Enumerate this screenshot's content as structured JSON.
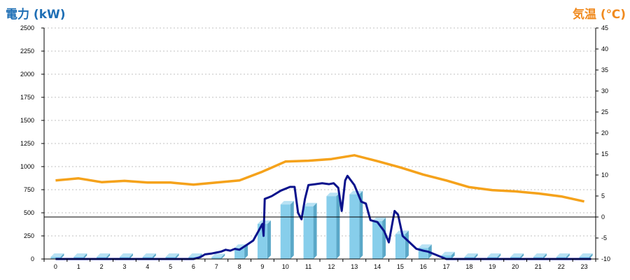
{
  "header": {
    "left_title": "電力 (kW)",
    "right_title": "気温 (℃)"
  },
  "colors": {
    "bar_front": "#87ceeb",
    "bar_side": "#5aa8c8",
    "bar_top": "#b8e2f4",
    "power_line": "#0a128c",
    "temp_line": "#f5a21b",
    "grid": "#c0c0c0",
    "zero_line": "#000000"
  },
  "chart_data": {
    "type": "bar+line",
    "categories": [
      "0",
      "1",
      "2",
      "3",
      "4",
      "5",
      "6",
      "7",
      "8",
      "9",
      "10",
      "11",
      "12",
      "13",
      "14",
      "15",
      "16",
      "17",
      "18",
      "19",
      "20",
      "21",
      "22",
      "23"
    ],
    "y_left": {
      "min": 0,
      "max": 2500,
      "ticks": [
        "0",
        "250",
        "500",
        "750",
        "1000",
        "1250",
        "1500",
        "1750",
        "2000",
        "2250",
        "2500"
      ]
    },
    "y_right": {
      "min": -10,
      "max": 45,
      "ticks": [
        "-10",
        "-5",
        "0",
        "5",
        "10",
        "15",
        "20",
        "25",
        "30",
        "35",
        "40",
        "45"
      ]
    },
    "grid": true,
    "bars": [
      0,
      0,
      0,
      0,
      0,
      0,
      0,
      20,
      120,
      380,
      590,
      570,
      680,
      700,
      410,
      270,
      120,
      40,
      0,
      0,
      0,
      0,
      0,
      0
    ],
    "power_line": [
      [
        0,
        0
      ],
      [
        5,
        0
      ],
      [
        6,
        0
      ],
      [
        6.3,
        20
      ],
      [
        6.5,
        50
      ],
      [
        6.8,
        60
      ],
      [
        7,
        70
      ],
      [
        7.2,
        80
      ],
      [
        7.4,
        100
      ],
      [
        7.6,
        90
      ],
      [
        7.8,
        110
      ],
      [
        8,
        100
      ],
      [
        8.3,
        150
      ],
      [
        8.6,
        200
      ],
      [
        8.8,
        290
      ],
      [
        9,
        380
      ],
      [
        9.05,
        250
      ],
      [
        9.1,
        650
      ],
      [
        9.4,
        680
      ],
      [
        9.8,
        740
      ],
      [
        10.2,
        780
      ],
      [
        10.4,
        780
      ],
      [
        10.55,
        500
      ],
      [
        10.7,
        430
      ],
      [
        10.85,
        650
      ],
      [
        11,
        800
      ],
      [
        11.3,
        810
      ],
      [
        11.6,
        820
      ],
      [
        11.9,
        810
      ],
      [
        12.1,
        820
      ],
      [
        12.3,
        770
      ],
      [
        12.45,
        520
      ],
      [
        12.6,
        850
      ],
      [
        12.7,
        900
      ],
      [
        13,
        800
      ],
      [
        13.3,
        620
      ],
      [
        13.5,
        600
      ],
      [
        13.7,
        420
      ],
      [
        14,
        400
      ],
      [
        14.3,
        300
      ],
      [
        14.5,
        180
      ],
      [
        14.75,
        520
      ],
      [
        14.9,
        480
      ],
      [
        15.1,
        250
      ],
      [
        15.4,
        180
      ],
      [
        15.7,
        110
      ],
      [
        16,
        90
      ],
      [
        16.2,
        80
      ],
      [
        16.5,
        50
      ],
      [
        16.8,
        20
      ],
      [
        17,
        0
      ],
      [
        17.3,
        0
      ],
      [
        23.3,
        0
      ]
    ],
    "temperature": [
      [
        0,
        8.7
      ],
      [
        1,
        9.2
      ],
      [
        2,
        8.3
      ],
      [
        3,
        8.6
      ],
      [
        4,
        8.2
      ],
      [
        5,
        8.2
      ],
      [
        6,
        7.7
      ],
      [
        7,
        8.2
      ],
      [
        8,
        8.7
      ],
      [
        9,
        10.8
      ],
      [
        10,
        13.2
      ],
      [
        11,
        13.4
      ],
      [
        12,
        13.8
      ],
      [
        13,
        14.7
      ],
      [
        14,
        13.3
      ],
      [
        15,
        11.8
      ],
      [
        16,
        10.1
      ],
      [
        17,
        8.7
      ],
      [
        18,
        7.1
      ],
      [
        19,
        6.4
      ],
      [
        20,
        6.1
      ],
      [
        21,
        5.6
      ],
      [
        22,
        4.9
      ],
      [
        23,
        3.7
      ]
    ]
  }
}
